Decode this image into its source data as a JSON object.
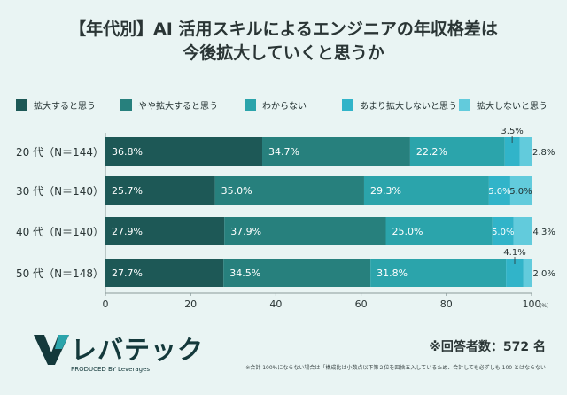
{
  "title": {
    "line1": "【年代別】AI 活用スキルによるエンジニアの年収格差は",
    "line2": "今後拡大していくと思うか"
  },
  "colors": {
    "background": "#e9f4f3",
    "series": [
      "#1d5856",
      "#27807d",
      "#2ba4ab",
      "#31b4c9",
      "#62cbdc"
    ]
  },
  "chart_data": {
    "type": "bar",
    "orientation": "horizontal",
    "stacked": true,
    "categories": [
      "20 代（N＝144）",
      "30 代（N＝140）",
      "40 代（N＝140）",
      "50 代（N＝148）"
    ],
    "series": [
      {
        "name": "拡大すると思う",
        "values": [
          36.8,
          25.7,
          27.9,
          27.7
        ],
        "labels": [
          "36.8%",
          "25.7%",
          "27.9%",
          "27.7%"
        ]
      },
      {
        "name": "やや拡大すると思う",
        "values": [
          34.7,
          35.0,
          37.9,
          34.5
        ],
        "labels": [
          "34.7%",
          "35.0%",
          "37.9%",
          "34.5%"
        ]
      },
      {
        "name": "わからない",
        "values": [
          22.2,
          29.3,
          25.0,
          31.8
        ],
        "labels": [
          "22.2%",
          "29.3%",
          "25.0%",
          "31.8%"
        ]
      },
      {
        "name": "あまり拡大しないと思う",
        "values": [
          3.5,
          5.0,
          5.0,
          4.1
        ],
        "labels": [
          "3.5%",
          "5.0%",
          "5.0%",
          "4.1%"
        ]
      },
      {
        "name": "拡大しないと思う",
        "values": [
          2.8,
          5.0,
          4.3,
          2.0
        ],
        "labels": [
          "2.8%",
          "5.0%",
          "4.3%",
          "2.0%"
        ]
      }
    ],
    "xlim": [
      0,
      100
    ],
    "xticks": [
      "0",
      "20",
      "40",
      "60",
      "80",
      "100"
    ],
    "xunit": "(%)",
    "legend_position": "top"
  },
  "footer": {
    "logo_text": "レバテック",
    "logo_sub": "PRODUCED BY Leverages",
    "respondents": "※回答者数：572 名",
    "note": "※合計 100%にならない場合は「構成比は小数点以下第２位を四捨五入しているため、合計しても必ずしも 100 とはならない"
  }
}
